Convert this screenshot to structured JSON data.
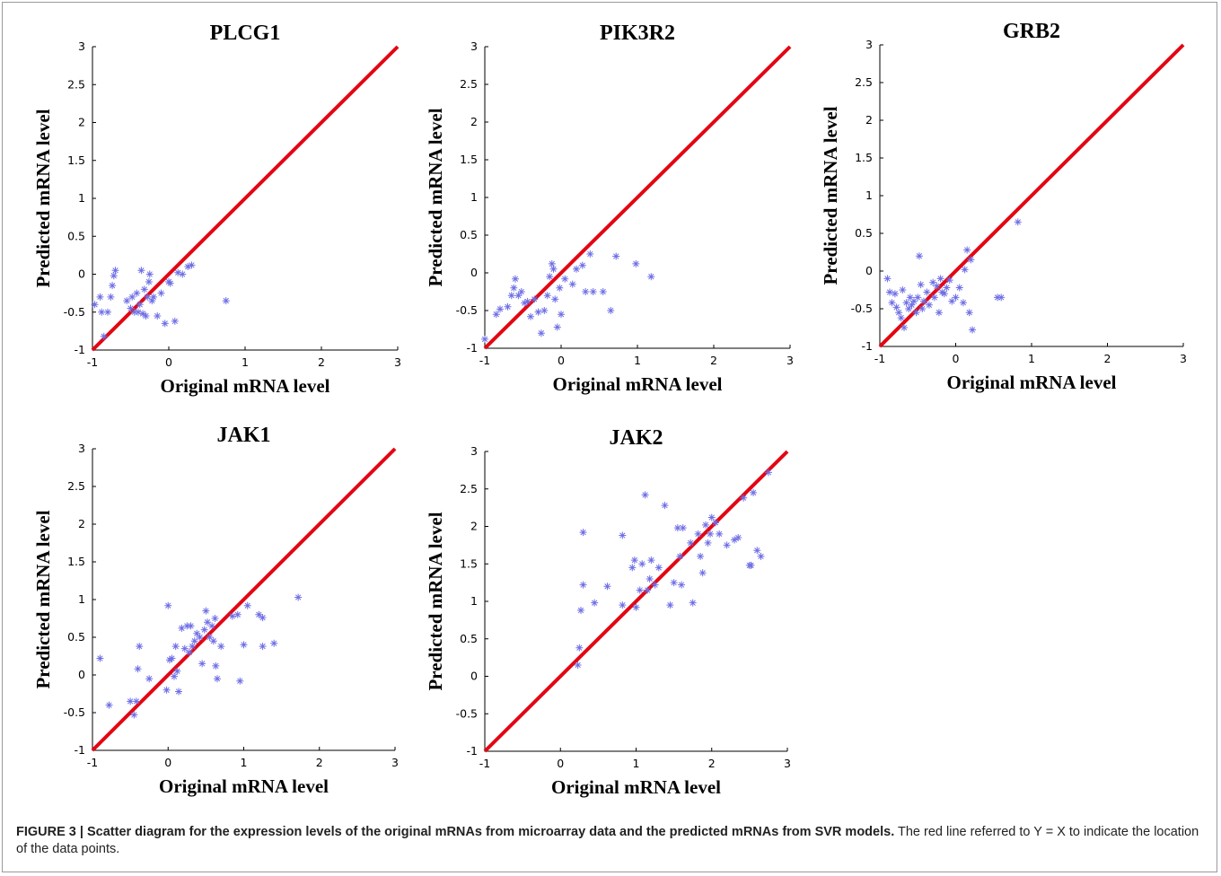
{
  "chart_data": [
    {
      "type": "scatter",
      "title": "PLCG1",
      "xlabel": "Original mRNA level",
      "ylabel": "Predicted mRNA level",
      "xlim": [
        -1,
        3
      ],
      "ylim": [
        -1,
        3
      ],
      "xticks": [
        "-1",
        "0",
        "1",
        "2",
        "3"
      ],
      "yticks": [
        "-1",
        "-0.5",
        "0",
        "0.5",
        "1",
        "1.5",
        "2",
        "2.5",
        "3"
      ],
      "reference_line": "Y = X",
      "points": [
        [
          -0.97,
          -0.4
        ],
        [
          -0.9,
          -0.3
        ],
        [
          -0.88,
          -0.5
        ],
        [
          -0.85,
          -0.82
        ],
        [
          -0.8,
          -0.5
        ],
        [
          -0.76,
          -0.3
        ],
        [
          -0.74,
          -0.15
        ],
        [
          -0.72,
          -0.02
        ],
        [
          -0.7,
          0.05
        ],
        [
          -0.55,
          -0.35
        ],
        [
          -0.5,
          -0.45
        ],
        [
          -0.48,
          -0.3
        ],
        [
          -0.45,
          -0.5
        ],
        [
          -0.42,
          -0.25
        ],
        [
          -0.4,
          -0.5
        ],
        [
          -0.38,
          -0.4
        ],
        [
          -0.36,
          0.05
        ],
        [
          -0.34,
          -0.52
        ],
        [
          -0.32,
          -0.2
        ],
        [
          -0.3,
          -0.55
        ],
        [
          -0.28,
          -0.3
        ],
        [
          -0.26,
          -0.1
        ],
        [
          -0.25,
          0.0
        ],
        [
          -0.22,
          -0.35
        ],
        [
          -0.2,
          -0.3
        ],
        [
          -0.15,
          -0.55
        ],
        [
          -0.1,
          -0.25
        ],
        [
          -0.05,
          -0.65
        ],
        [
          0.0,
          -0.1
        ],
        [
          0.02,
          -0.12
        ],
        [
          0.08,
          -0.62
        ],
        [
          0.12,
          0.02
        ],
        [
          0.18,
          0.0
        ],
        [
          0.25,
          0.1
        ],
        [
          0.3,
          0.12
        ],
        [
          0.75,
          -0.35
        ]
      ]
    },
    {
      "type": "scatter",
      "title": "PIK3R2",
      "xlabel": "Original mRNA level",
      "ylabel": "Predicted mRNA level",
      "xlim": [
        -1,
        3
      ],
      "ylim": [
        -1,
        3
      ],
      "xticks": [
        "-1",
        "0",
        "1",
        "2",
        "3"
      ],
      "yticks": [
        "-1",
        "-0.5",
        "0",
        "0.5",
        "1",
        "1.5",
        "2",
        "2.5",
        "3"
      ],
      "reference_line": "Y = X",
      "points": [
        [
          -1.0,
          -0.88
        ],
        [
          -0.85,
          -0.55
        ],
        [
          -0.8,
          -0.48
        ],
        [
          -0.7,
          -0.45
        ],
        [
          -0.65,
          -0.3
        ],
        [
          -0.62,
          -0.2
        ],
        [
          -0.6,
          -0.08
        ],
        [
          -0.56,
          -0.3
        ],
        [
          -0.52,
          -0.25
        ],
        [
          -0.48,
          -0.4
        ],
        [
          -0.44,
          -0.38
        ],
        [
          -0.4,
          -0.58
        ],
        [
          -0.35,
          -0.35
        ],
        [
          -0.3,
          -0.52
        ],
        [
          -0.26,
          -0.8
        ],
        [
          -0.22,
          -0.5
        ],
        [
          -0.18,
          -0.3
        ],
        [
          -0.15,
          -0.05
        ],
        [
          -0.12,
          0.12
        ],
        [
          -0.1,
          0.05
        ],
        [
          -0.08,
          -0.35
        ],
        [
          -0.05,
          -0.72
        ],
        [
          -0.02,
          -0.2
        ],
        [
          0.0,
          -0.55
        ],
        [
          0.05,
          -0.08
        ],
        [
          0.15,
          -0.15
        ],
        [
          0.2,
          0.05
        ],
        [
          0.28,
          0.1
        ],
        [
          0.32,
          -0.25
        ],
        [
          0.38,
          0.25
        ],
        [
          0.42,
          -0.25
        ],
        [
          0.55,
          -0.25
        ],
        [
          0.65,
          -0.5
        ],
        [
          0.72,
          0.22
        ],
        [
          0.98,
          0.12
        ],
        [
          1.18,
          -0.05
        ]
      ]
    },
    {
      "type": "scatter",
      "title": "GRB2",
      "xlabel": "Original mRNA level",
      "ylabel": "Predicted mRNA level",
      "xlim": [
        -1,
        3
      ],
      "ylim": [
        -1,
        3
      ],
      "xticks": [
        "-1",
        "0",
        "1",
        "2",
        "3"
      ],
      "yticks": [
        "-1",
        "-0.5",
        "0",
        "0.5",
        "1",
        "1.5",
        "2",
        "2.5",
        "3"
      ],
      "reference_line": "Y = X",
      "points": [
        [
          -0.9,
          -0.1
        ],
        [
          -0.87,
          -0.28
        ],
        [
          -0.84,
          -0.42
        ],
        [
          -0.8,
          -0.3
        ],
        [
          -0.78,
          -0.48
        ],
        [
          -0.75,
          -0.55
        ],
        [
          -0.72,
          -0.62
        ],
        [
          -0.7,
          -0.25
        ],
        [
          -0.68,
          -0.75
        ],
        [
          -0.65,
          -0.42
        ],
        [
          -0.62,
          -0.5
        ],
        [
          -0.6,
          -0.35
        ],
        [
          -0.58,
          -0.45
        ],
        [
          -0.55,
          -0.4
        ],
        [
          -0.52,
          -0.55
        ],
        [
          -0.5,
          -0.35
        ],
        [
          -0.48,
          0.2
        ],
        [
          -0.46,
          -0.18
        ],
        [
          -0.44,
          -0.5
        ],
        [
          -0.42,
          -0.4
        ],
        [
          -0.38,
          -0.28
        ],
        [
          -0.35,
          -0.45
        ],
        [
          -0.3,
          -0.15
        ],
        [
          -0.28,
          -0.35
        ],
        [
          -0.25,
          -0.2
        ],
        [
          -0.22,
          -0.55
        ],
        [
          -0.2,
          -0.1
        ],
        [
          -0.18,
          -0.28
        ],
        [
          -0.15,
          -0.3
        ],
        [
          -0.12,
          -0.22
        ],
        [
          -0.08,
          -0.12
        ],
        [
          -0.05,
          -0.4
        ],
        [
          0.0,
          -0.35
        ],
        [
          0.05,
          -0.22
        ],
        [
          0.1,
          -0.42
        ],
        [
          0.12,
          0.02
        ],
        [
          0.15,
          0.28
        ],
        [
          0.18,
          -0.55
        ],
        [
          0.22,
          -0.78
        ],
        [
          0.2,
          0.15
        ],
        [
          0.55,
          -0.35
        ],
        [
          0.6,
          -0.35
        ],
        [
          0.82,
          0.65
        ]
      ]
    },
    {
      "type": "scatter",
      "title": "JAK1",
      "xlabel": "Original mRNA level",
      "ylabel": "Predicted mRNA level",
      "xlim": [
        -1,
        3
      ],
      "ylim": [
        -1,
        3
      ],
      "xticks": [
        "-1",
        "0",
        "1",
        "2",
        "3"
      ],
      "yticks": [
        "-1",
        "-0.5",
        "0",
        "0.5",
        "1",
        "1.5",
        "2",
        "2.5",
        "3"
      ],
      "reference_line": "Y = X",
      "points": [
        [
          -0.9,
          0.22
        ],
        [
          -0.78,
          -0.4
        ],
        [
          -0.5,
          -0.35
        ],
        [
          -0.45,
          -0.53
        ],
        [
          -0.42,
          -0.35
        ],
        [
          -0.4,
          0.08
        ],
        [
          -0.38,
          0.38
        ],
        [
          -0.25,
          -0.05
        ],
        [
          -0.02,
          -0.2
        ],
        [
          0.0,
          0.92
        ],
        [
          0.02,
          0.2
        ],
        [
          0.05,
          0.22
        ],
        [
          0.08,
          -0.02
        ],
        [
          0.1,
          0.38
        ],
        [
          0.12,
          0.05
        ],
        [
          0.14,
          -0.22
        ],
        [
          0.18,
          0.62
        ],
        [
          0.22,
          0.35
        ],
        [
          0.25,
          0.65
        ],
        [
          0.28,
          0.3
        ],
        [
          0.3,
          0.65
        ],
        [
          0.32,
          0.38
        ],
        [
          0.35,
          0.45
        ],
        [
          0.38,
          0.55
        ],
        [
          0.42,
          0.5
        ],
        [
          0.45,
          0.15
        ],
        [
          0.48,
          0.6
        ],
        [
          0.5,
          0.85
        ],
        [
          0.52,
          0.7
        ],
        [
          0.55,
          0.5
        ],
        [
          0.58,
          0.65
        ],
        [
          0.6,
          0.45
        ],
        [
          0.62,
          0.75
        ],
        [
          0.63,
          0.12
        ],
        [
          0.65,
          -0.05
        ],
        [
          0.7,
          0.38
        ],
        [
          0.85,
          0.78
        ],
        [
          0.92,
          0.8
        ],
        [
          0.95,
          -0.08
        ],
        [
          1.0,
          0.4
        ],
        [
          1.05,
          0.92
        ],
        [
          1.2,
          0.8
        ],
        [
          1.25,
          0.38
        ],
        [
          1.25,
          0.76
        ],
        [
          1.4,
          0.42
        ],
        [
          1.72,
          1.03
        ]
      ]
    },
    {
      "type": "scatter",
      "title": "JAK2",
      "xlabel": "Original mRNA level",
      "ylabel": "Predicted mRNA level",
      "xlim": [
        -1,
        3
      ],
      "ylim": [
        -1,
        3
      ],
      "xticks": [
        "-1",
        "0",
        "1",
        "2",
        "3"
      ],
      "yticks": [
        "-1",
        "-0.5",
        "0",
        "0.5",
        "1",
        "1.5",
        "2",
        "2.5",
        "3"
      ],
      "reference_line": "Y = X",
      "points": [
        [
          0.23,
          0.15
        ],
        [
          0.25,
          0.38
        ],
        [
          0.27,
          0.88
        ],
        [
          0.3,
          1.22
        ],
        [
          0.3,
          1.92
        ],
        [
          0.45,
          0.98
        ],
        [
          0.62,
          1.2
        ],
        [
          0.82,
          0.95
        ],
        [
          0.82,
          1.88
        ],
        [
          0.95,
          1.45
        ],
        [
          0.98,
          1.55
        ],
        [
          1.0,
          0.92
        ],
        [
          1.05,
          1.15
        ],
        [
          1.08,
          1.5
        ],
        [
          1.12,
          2.42
        ],
        [
          1.15,
          1.15
        ],
        [
          1.18,
          1.3
        ],
        [
          1.2,
          1.55
        ],
        [
          1.25,
          1.22
        ],
        [
          1.3,
          1.45
        ],
        [
          1.38,
          2.28
        ],
        [
          1.45,
          0.95
        ],
        [
          1.5,
          1.25
        ],
        [
          1.55,
          1.98
        ],
        [
          1.58,
          1.6
        ],
        [
          1.6,
          1.22
        ],
        [
          1.62,
          1.98
        ],
        [
          1.72,
          1.78
        ],
        [
          1.75,
          0.98
        ],
        [
          1.82,
          1.9
        ],
        [
          1.85,
          1.6
        ],
        [
          1.88,
          1.38
        ],
        [
          1.92,
          2.02
        ],
        [
          1.95,
          1.78
        ],
        [
          1.98,
          1.9
        ],
        [
          2.0,
          2.12
        ],
        [
          2.05,
          2.05
        ],
        [
          2.1,
          1.9
        ],
        [
          2.2,
          1.75
        ],
        [
          2.3,
          1.82
        ],
        [
          2.35,
          1.85
        ],
        [
          2.42,
          2.38
        ],
        [
          2.5,
          1.48
        ],
        [
          2.52,
          1.48
        ],
        [
          2.55,
          2.45
        ],
        [
          2.6,
          1.68
        ],
        [
          2.65,
          1.6
        ],
        [
          2.75,
          2.72
        ]
      ]
    }
  ],
  "caption": {
    "bold": "FIGURE 3 | Scatter diagram for the expression levels of the original mRNAs from microarray data and the predicted mRNAs from SVR models.",
    "rest": " The red line referred to Y = X to indicate the location of the data points."
  }
}
